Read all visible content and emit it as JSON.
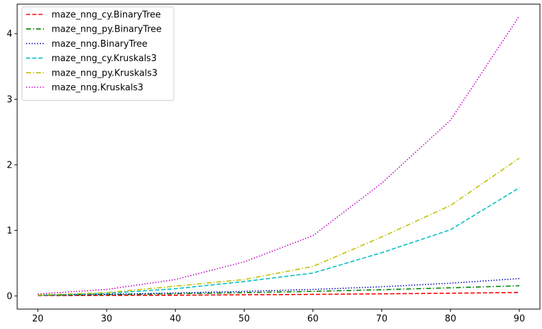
{
  "chart_data": {
    "type": "line",
    "title": "",
    "xlabel": "",
    "ylabel": "",
    "x": [
      20,
      30,
      40,
      50,
      60,
      70,
      80,
      90
    ],
    "xlim": [
      17,
      93
    ],
    "ylim": [
      -0.2,
      4.45
    ],
    "xticks": [
      20,
      30,
      40,
      50,
      60,
      70,
      80,
      90
    ],
    "yticks": [
      0,
      1,
      2,
      3,
      4
    ],
    "grid": false,
    "legend": "top-left",
    "series": [
      {
        "name": "maze_nng_cy.BinaryTree",
        "color": "#ff0000",
        "dash": "dashed",
        "values": [
          0.005,
          0.008,
          0.012,
          0.018,
          0.024,
          0.032,
          0.042,
          0.053
        ]
      },
      {
        "name": "maze_nng_py.BinaryTree",
        "color": "#008000",
        "dash": "dashdot",
        "values": [
          0.01,
          0.02,
          0.035,
          0.05,
          0.07,
          0.095,
          0.125,
          0.155
        ]
      },
      {
        "name": "maze_nng.BinaryTree",
        "color": "#0000bf",
        "dash": "dotted",
        "values": [
          0.015,
          0.025,
          0.045,
          0.07,
          0.1,
          0.14,
          0.195,
          0.265
        ]
      },
      {
        "name": "maze_nng_cy.Kruskals3",
        "color": "#00bfbf",
        "dash": "dashed",
        "values": [
          0.01,
          0.04,
          0.11,
          0.22,
          0.35,
          0.66,
          1.01,
          1.65
        ]
      },
      {
        "name": "maze_nng_py.Kruskals3",
        "color": "#bfbf00",
        "dash": "dashdot",
        "values": [
          0.015,
          0.05,
          0.15,
          0.25,
          0.45,
          0.9,
          1.38,
          2.1
        ]
      },
      {
        "name": "maze_nng.Kruskals3",
        "color": "#bf00bf",
        "dash": "dotted",
        "values": [
          0.03,
          0.1,
          0.25,
          0.52,
          0.92,
          1.72,
          2.68,
          4.27
        ]
      }
    ]
  }
}
